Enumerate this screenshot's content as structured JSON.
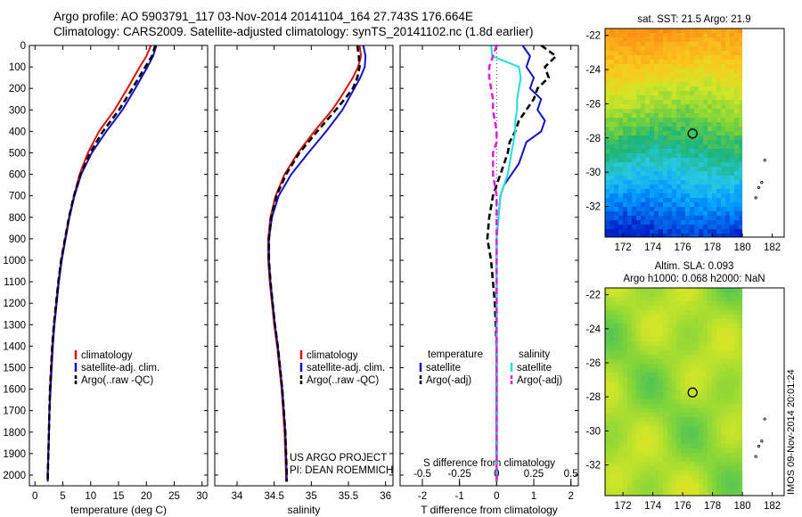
{
  "header": {
    "line1": "Argo profile: AO 5903791_117 03-Nov-2014 20141104_164 27.743S 176.664E",
    "line2": "Climatology: CARS2009. Satellite-adjusted climatology: synTS_20141102.nc (1.8d earlier)"
  },
  "footer_stamp": "IMOS 09-Nov-2014 20:01:24",
  "colors": {
    "climatology": "#dd1111",
    "satellite": "#1111cc",
    "argo": "#000000",
    "satellite_s": "#22dddd",
    "argo_s": "#dd22dd"
  },
  "chart_data": [
    {
      "id": "temperature",
      "type": "line",
      "xlabel": "temperature (deg C)",
      "ylabel": "",
      "xlim": [
        -1,
        31
      ],
      "ylim": [
        2050,
        0
      ],
      "xticks": [
        0,
        5,
        10,
        15,
        20,
        25,
        30
      ],
      "yticks": [
        0,
        100,
        200,
        300,
        400,
        500,
        600,
        700,
        800,
        900,
        1000,
        1100,
        1200,
        1300,
        1400,
        1500,
        1600,
        1700,
        1800,
        1900,
        2000
      ],
      "legend": [
        "climatology",
        "satellite-adj. clim.",
        "Argo(..raw -QC)"
      ],
      "legend_position": "lower-middle",
      "series": [
        {
          "name": "climatology",
          "color": "#dd1111",
          "style": "solid",
          "y": [
            0,
            50,
            100,
            200,
            300,
            400,
            500,
            600,
            700,
            800,
            900,
            1000,
            1100,
            1200,
            1300,
            1400,
            1500,
            1600,
            1700,
            1800,
            1900,
            2000,
            2030
          ],
          "x": [
            20.8,
            20.0,
            18.8,
            16.6,
            14.3,
            11.5,
            9.5,
            8.0,
            7.0,
            6.1,
            5.4,
            4.7,
            4.2,
            3.8,
            3.4,
            3.1,
            2.9,
            2.7,
            2.6,
            2.5,
            2.4,
            2.3,
            2.3
          ]
        },
        {
          "name": "satellite-adj. clim.",
          "color": "#1111cc",
          "style": "solid",
          "y": [
            0,
            50,
            100,
            200,
            300,
            400,
            500,
            600,
            700,
            800,
            900,
            1000,
            1100,
            1200,
            1300,
            1400,
            1500,
            1600,
            1700,
            1800,
            1900,
            2000,
            2030
          ],
          "x": [
            21.8,
            21.2,
            20.2,
            18.0,
            15.7,
            12.8,
            10.2,
            8.3,
            7.1,
            6.2,
            5.5,
            4.8,
            4.3,
            3.9,
            3.5,
            3.2,
            3.0,
            2.8,
            2.6,
            2.5,
            2.4,
            2.3,
            2.3
          ]
        },
        {
          "name": "Argo(..raw -QC)",
          "color": "#000000",
          "style": "dash",
          "y": [
            0,
            50,
            100,
            200,
            300,
            400,
            500,
            600,
            700,
            800,
            900,
            1000,
            1100,
            1200,
            1300,
            1400,
            1500,
            1600,
            1700,
            1800,
            1900,
            2000,
            2030
          ],
          "x": [
            21.6,
            21.0,
            19.8,
            17.5,
            15.1,
            12.2,
            9.9,
            8.2,
            7.0,
            6.1,
            5.4,
            4.7,
            4.2,
            3.8,
            3.4,
            3.1,
            2.9,
            2.7,
            2.6,
            2.5,
            2.4,
            2.3,
            2.3
          ]
        }
      ]
    },
    {
      "id": "salinity",
      "type": "line",
      "xlabel": "salinity",
      "xlim": [
        33.7,
        36.1
      ],
      "ylim": [
        2050,
        0
      ],
      "xticks": [
        34,
        34.5,
        35,
        35.5,
        36
      ],
      "legend": [
        "climatology",
        "satellite-adj. clim.",
        "Argo(..raw -QC)"
      ],
      "legend_position": "lower-right",
      "annotation": [
        "US ARGO PROJECT",
        "PI: DEAN ROEMMICH"
      ],
      "series": [
        {
          "name": "climatology",
          "color": "#dd1111",
          "style": "solid",
          "y": [
            0,
            50,
            100,
            150,
            200,
            250,
            300,
            400,
            500,
            600,
            700,
            800,
            900,
            1000,
            1100,
            1200,
            1300,
            1400,
            1500,
            1600,
            1700,
            1800,
            1900,
            2000,
            2030
          ],
          "x": [
            35.65,
            35.67,
            35.63,
            35.56,
            35.47,
            35.38,
            35.28,
            35.04,
            34.82,
            34.64,
            34.52,
            34.45,
            34.42,
            34.42,
            34.44,
            34.47,
            34.5,
            34.54,
            34.57,
            34.6,
            34.62,
            34.64,
            34.65,
            34.66,
            34.66
          ]
        },
        {
          "name": "satellite-adj. clim.",
          "color": "#1111cc",
          "style": "solid",
          "y": [
            0,
            50,
            100,
            150,
            200,
            250,
            300,
            400,
            500,
            600,
            700,
            800,
            900,
            1000,
            1100,
            1200,
            1300,
            1400,
            1500,
            1600,
            1700,
            1800,
            1900,
            2000,
            2030
          ],
          "x": [
            35.7,
            35.73,
            35.72,
            35.66,
            35.58,
            35.5,
            35.42,
            35.2,
            34.96,
            34.73,
            34.56,
            34.47,
            34.43,
            34.43,
            34.45,
            34.48,
            34.51,
            34.55,
            34.58,
            34.61,
            34.63,
            34.65,
            34.66,
            34.67,
            34.67
          ]
        },
        {
          "name": "Argo(..raw -QC)",
          "color": "#000000",
          "style": "dash",
          "y": [
            0,
            50,
            100,
            150,
            200,
            250,
            300,
            400,
            500,
            600,
            700,
            800,
            900,
            1000,
            1100,
            1200,
            1300,
            1400,
            1500,
            1600,
            1700,
            1800,
            1900,
            2000,
            2030
          ],
          "x": [
            35.62,
            35.64,
            35.65,
            35.62,
            35.56,
            35.45,
            35.33,
            35.08,
            34.84,
            34.66,
            34.53,
            34.46,
            34.43,
            34.43,
            34.45,
            34.48,
            34.51,
            34.55,
            34.58,
            34.61,
            34.63,
            34.65,
            34.66,
            34.67,
            34.67
          ]
        }
      ]
    },
    {
      "id": "differences",
      "type": "line",
      "xlabel": "T difference from climatology",
      "top_axis_label": "S difference from climatology",
      "xlim": [
        -2.6,
        2.2
      ],
      "ylim": [
        2050,
        0
      ],
      "xticks": [
        -2,
        -1,
        0,
        1,
        2
      ],
      "top_xticks": [
        "-0.5",
        "-0.25",
        "0",
        "0.25",
        "0.5"
      ],
      "legend_left_header": "temperature",
      "legend_right_header": "salinity",
      "legend": [
        "satellite",
        "Argo(-adj)",
        "satellite",
        "Argo(-adj)"
      ],
      "series": [
        {
          "name": "satellite",
          "variable": "temperature",
          "color": "#1111cc",
          "style": "solid",
          "y": [
            0,
            50,
            100,
            150,
            200,
            250,
            300,
            350,
            400,
            450,
            500,
            550,
            600,
            650,
            700,
            800,
            900,
            1000,
            1200,
            1400,
            1600,
            1800,
            2000,
            2030
          ],
          "x": [
            0.7,
            0.9,
            0.8,
            1.0,
            0.9,
            1.2,
            1.1,
            1.3,
            1.2,
            0.8,
            0.7,
            0.6,
            0.4,
            0.2,
            0.1,
            0.05,
            0.0,
            0.0,
            0.0,
            0.0,
            0.0,
            0.0,
            0.0,
            0.0
          ]
        },
        {
          "name": "Argo(-adj)",
          "variable": "temperature",
          "color": "#000000",
          "style": "dash",
          "y": [
            0,
            50,
            100,
            150,
            200,
            250,
            300,
            350,
            400,
            450,
            500,
            550,
            600,
            650,
            700,
            800,
            900,
            1000,
            1200,
            1400,
            1600,
            1800,
            2000,
            2030
          ],
          "x": [
            1.2,
            1.6,
            1.3,
            1.4,
            1.1,
            1.0,
            0.8,
            0.6,
            0.5,
            0.35,
            0.3,
            0.2,
            0.1,
            0.0,
            -0.1,
            -0.2,
            -0.25,
            -0.15,
            -0.05,
            0.0,
            0.0,
            0.0,
            0.0,
            0.0
          ]
        },
        {
          "name": "satellite",
          "variable": "salinity",
          "color": "#22dddd",
          "style": "solid",
          "y": [
            0,
            50,
            100,
            150,
            200,
            250,
            300,
            350,
            400,
            450,
            500,
            550,
            600,
            650,
            700,
            800,
            900,
            1000,
            1200,
            1400,
            1600,
            1800,
            2000,
            2030
          ],
          "x": [
            -0.15,
            -0.12,
            0.6,
            0.65,
            0.6,
            0.55,
            0.55,
            0.5,
            0.5,
            0.45,
            0.4,
            0.35,
            0.3,
            0.2,
            0.1,
            0.05,
            0.0,
            0.0,
            0.0,
            0.0,
            0.0,
            0.0,
            0.0,
            0.0
          ]
        },
        {
          "name": "Argo(-adj)",
          "variable": "salinity",
          "color": "#dd22dd",
          "style": "dash",
          "y": [
            0,
            50,
            100,
            150,
            200,
            250,
            300,
            350,
            400,
            450,
            500,
            550,
            600,
            650,
            700,
            800,
            900,
            1000,
            1200,
            1400,
            1600,
            1800,
            2000,
            2030
          ],
          "x": [
            0.0,
            -0.1,
            -0.2,
            -0.2,
            -0.15,
            -0.1,
            -0.1,
            -0.05,
            0.0,
            0.0,
            -0.1,
            -0.1,
            -0.1,
            -0.05,
            0.0,
            0.0,
            0.0,
            0.0,
            0.0,
            0.0,
            0.0,
            0.0,
            0.0,
            0.0
          ]
        }
      ]
    },
    {
      "id": "sst-map",
      "type": "heatmap",
      "title": "sat. SST: 21.5  Argo: 21.9",
      "xlim": [
        170.8,
        182.8
      ],
      "ylim": [
        -33.8,
        -21.6
      ],
      "xticks": [
        172,
        174,
        176,
        178,
        180,
        182
      ],
      "yticks": [
        -22,
        -24,
        -26,
        -28,
        -30,
        -32
      ],
      "marker": {
        "lon": 176.664,
        "lat": -27.743
      }
    },
    {
      "id": "sla-map",
      "type": "heatmap",
      "title_lines": [
        "Altim. SLA: 0.093",
        "Argo h1000: 0.068 h2000: NaN"
      ],
      "xlim": [
        170.8,
        182.8
      ],
      "ylim": [
        -33.8,
        -21.6
      ],
      "xticks": [
        172,
        174,
        176,
        178,
        180,
        182
      ],
      "yticks": [
        -22,
        -24,
        -26,
        -28,
        -30,
        -32
      ],
      "marker": {
        "lon": 176.664,
        "lat": -27.743
      }
    }
  ]
}
